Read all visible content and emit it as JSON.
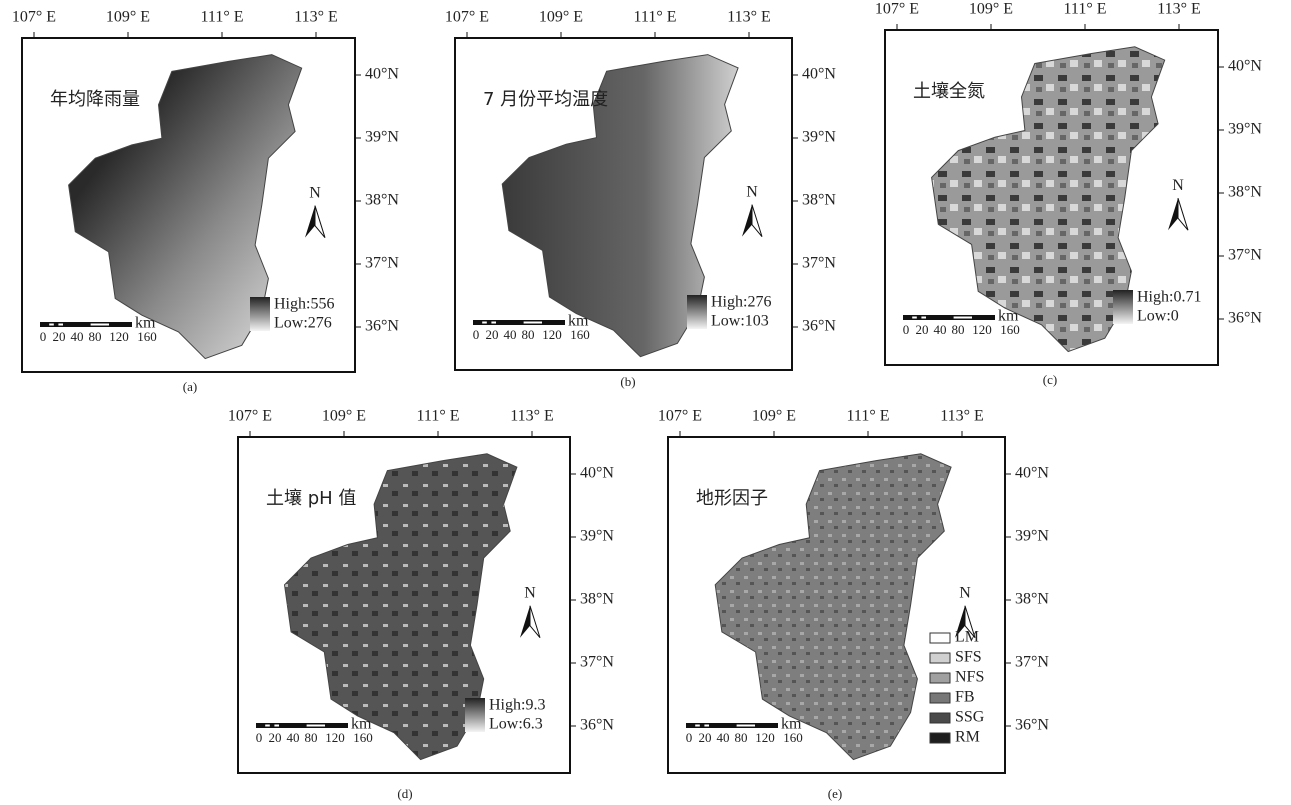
{
  "axes": {
    "lon_labels": [
      "107° E",
      "109° E",
      "111° E",
      "113° E"
    ],
    "lat_labels": [
      "40°N",
      "39°N",
      "38°N",
      "37°N",
      "36°N"
    ]
  },
  "north": "N",
  "scale_bar": {
    "unit": "km",
    "labels": [
      "0",
      "20",
      "40",
      "80",
      "120",
      "160"
    ]
  },
  "panels": [
    {
      "title": "年均降雨量",
      "caption": "(a)",
      "legend": {
        "high": "High:556",
        "low": "Low:276"
      }
    },
    {
      "title": "7 月份平均温度",
      "caption": "(b)",
      "legend": {
        "high": "High:276",
        "low": "Low:103"
      }
    },
    {
      "title": "土壤全氮",
      "caption": "(c)",
      "legend": {
        "high": "High:0.71",
        "low": "Low:0"
      }
    },
    {
      "title": "土壤 pH 值",
      "caption": "(d)",
      "legend": {
        "high": "High:9.3",
        "low": "Low:6.3"
      }
    },
    {
      "title": "地形因子",
      "caption": "(e)",
      "legend": {
        "categories": [
          "LM",
          "SFS",
          "NFS",
          "FB",
          "SSG",
          "RM"
        ]
      }
    }
  ]
}
